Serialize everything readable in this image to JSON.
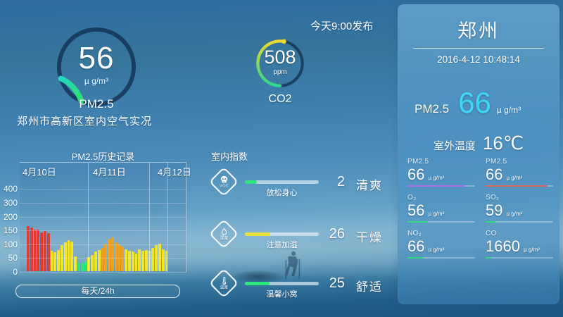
{
  "header": {
    "publish_time": "今天9:00发布",
    "location_caption": "郑州市高新区室内空气实况"
  },
  "gauges": {
    "pm25": {
      "label": "PM2.5",
      "value": "56",
      "unit": "µ g/m³",
      "arc_color_start": "#22d8c0",
      "arc_color_end": "#2ee06e"
    },
    "co2": {
      "label": "CO2",
      "value": "508",
      "unit": "ppm",
      "arc_color_start": "#2fd98d",
      "arc_color_mid": "#9fd858",
      "arc_color_end": "#ecd92f"
    }
  },
  "chart_data": {
    "type": "bar",
    "title": "PM2.5历史记录",
    "button_label": "每天/24h",
    "date_labels": [
      "4月10日",
      "4月11日",
      "4月12日"
    ],
    "y_ticks": [
      "400",
      "300",
      "200",
      "150",
      "100",
      "50",
      "0"
    ],
    "ylim": [
      0,
      450
    ],
    "grid": true,
    "values": [
      165,
      160,
      152,
      150,
      140,
      145,
      138,
      75,
      70,
      78,
      95,
      105,
      112,
      108,
      55,
      30,
      28,
      35,
      50,
      58,
      72,
      78,
      85,
      100,
      115,
      122,
      105,
      98,
      90,
      80,
      75,
      72,
      65,
      80,
      75,
      78,
      75,
      85,
      95,
      100,
      80,
      75
    ],
    "colors": [
      "r",
      "r",
      "r",
      "r",
      "r",
      "r",
      "r",
      "y",
      "y",
      "y",
      "y",
      "y",
      "y",
      "y",
      "y",
      "g",
      "g",
      "g",
      "y",
      "y",
      "y",
      "y",
      "o",
      "o",
      "o",
      "o",
      "o",
      "o",
      "o",
      "y",
      "y",
      "y",
      "y",
      "y",
      "y",
      "y",
      "y",
      "y",
      "y",
      "y",
      "y",
      "y"
    ],
    "color_map": {
      "r": "#e23a35",
      "y": "#f2e32b",
      "g": "#2ee57f",
      "o": "#eda224"
    }
  },
  "indoor": {
    "header": "室内指数",
    "rows": [
      {
        "icon": "skull",
        "icon_label": "VOC",
        "caption": "放松身心",
        "value": "2",
        "status": "清爽",
        "fill_color": "#2ee57f",
        "fill_pct": 16
      },
      {
        "icon": "droplet",
        "icon_label": "湿度",
        "caption": "注意加湿",
        "value": "26",
        "status": "干燥",
        "fill_color": "#e8e13a",
        "fill_pct": 34
      },
      {
        "icon": "thermometer",
        "icon_label": "温度",
        "caption": "温馨小窝",
        "value": "25",
        "status": "舒适",
        "fill_color": "#2ee57f",
        "fill_pct": 33
      }
    ]
  },
  "city_panel": {
    "city": "郑州",
    "datetime": "2016-4-12 10:48:14",
    "pm25_label": "PM2.5",
    "pm25_value": "66",
    "pm25_unit": "µ g/m³",
    "pm25_value_color": "#3fd9f7",
    "outdoor_temp_label": "室外温度",
    "outdoor_temp_value": "16℃",
    "pollutants": [
      {
        "label": "PM2.5",
        "value": "66",
        "unit": "µ g/m³",
        "fill_color": "#b56be6",
        "fill_pct": 85
      },
      {
        "label": "PM2.5",
        "value": "66",
        "unit": "µ g/m³",
        "fill_color": "#dd6b55",
        "fill_pct": 92
      },
      {
        "label": "O₃",
        "value": "56",
        "unit": "µ g/m³",
        "fill_color": "#2fdb7d",
        "fill_pct": 30
      },
      {
        "label": "SO₂",
        "value": "59",
        "unit": "µ g/m³",
        "fill_color": "#2fdb7d",
        "fill_pct": 16
      },
      {
        "label": "NO₂",
        "value": "66",
        "unit": "µ g/m³",
        "fill_color": "#2fdb7d",
        "fill_pct": 24
      },
      {
        "label": "CO",
        "value": "1660",
        "unit": "µ g/m³",
        "fill_color": "#2fdb7d",
        "fill_pct": 8
      }
    ]
  }
}
